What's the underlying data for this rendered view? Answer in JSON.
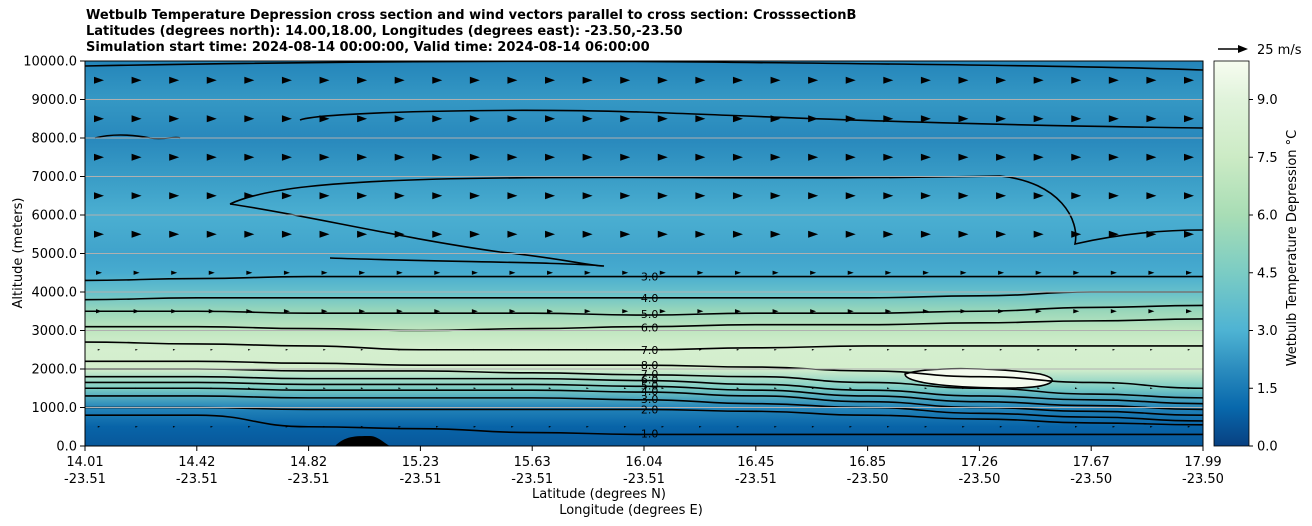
{
  "chart_data": {
    "type": "contour",
    "title_lines": [
      "Wetbulb Temperature Depression cross section and wind vectors parallel to cross section: CrosssectionB",
      "Latitudes (degrees north): 14.00,18.00, Longitudes (degrees east): -23.50,-23.50",
      "Simulation start time: 2024-08-14 00:00:00, Valid time: 2024-08-14 06:00:00"
    ],
    "xlabel": "Latitude (degrees N)",
    "xlabel2": "Longitude (degrees E)",
    "ylabel": "Altitude (meters)",
    "ylim": [
      0,
      10000
    ],
    "yticks": [
      "0.0",
      "1000.0",
      "2000.0",
      "3000.0",
      "4000.0",
      "5000.0",
      "6000.0",
      "7000.0",
      "8000.0",
      "9000.0",
      "10000.0"
    ],
    "xticks": [
      {
        "lat": "14.01",
        "lon": "-23.51"
      },
      {
        "lat": "14.42",
        "lon": "-23.51"
      },
      {
        "lat": "14.82",
        "lon": "-23.51"
      },
      {
        "lat": "15.23",
        "lon": "-23.51"
      },
      {
        "lat": "15.63",
        "lon": "-23.51"
      },
      {
        "lat": "16.04",
        "lon": "-23.51"
      },
      {
        "lat": "16.45",
        "lon": "-23.51"
      },
      {
        "lat": "16.85",
        "lon": "-23.50"
      },
      {
        "lat": "17.26",
        "lon": "-23.50"
      },
      {
        "lat": "17.67",
        "lon": "-23.50"
      },
      {
        "lat": "17.99",
        "lon": "-23.50"
      }
    ],
    "grid": "horizontal",
    "colorbar": {
      "label": "Wetbulb Temperature Depression °C",
      "range": [
        0,
        10
      ],
      "ticks": [
        "0.0",
        "1.5",
        "3.0",
        "4.5",
        "6.0",
        "7.5",
        "9.0"
      ],
      "colormap": "GnBu (reversed)"
    },
    "quiver_key": "25 m/s",
    "contour_labels": [
      "1.0",
      "2.0",
      "3.0",
      "4.0",
      "5.0",
      "6.0",
      "7.0",
      "8.0",
      "9.0"
    ],
    "profile": [
      {
        "z": 0,
        "value": 0.6
      },
      {
        "z": 500,
        "value": 0.9
      },
      {
        "z": 1000,
        "value": 1.8
      },
      {
        "z": 1500,
        "value": 4.5
      },
      {
        "z": 2000,
        "value": 8.0
      },
      {
        "z": 2500,
        "value": 8.2
      },
      {
        "z": 3000,
        "value": 7.0
      },
      {
        "z": 3500,
        "value": 5.5
      },
      {
        "z": 4000,
        "value": 3.8
      },
      {
        "z": 4500,
        "value": 2.8
      },
      {
        "z": 5000,
        "value": 2.6
      },
      {
        "z": 6000,
        "value": 2.9
      },
      {
        "z": 7000,
        "value": 2.4
      },
      {
        "z": 8000,
        "value": 1.9
      },
      {
        "z": 9000,
        "value": 2.3
      },
      {
        "z": 10000,
        "value": 1.8
      }
    ],
    "contours": [
      {
        "level": "1.0",
        "z": [
          800,
          800,
          500,
          450,
          350,
          300,
          300,
          300,
          300,
          300,
          300
        ]
      },
      {
        "level": "2.0",
        "z": [
          1000,
          1000,
          950,
          950,
          950,
          950,
          900,
          800,
          700,
          600,
          550
        ]
      },
      {
        "level": "3.0",
        "z": [
          1300,
          1300,
          1250,
          1250,
          1250,
          1200,
          1100,
          1000,
          850,
          750,
          650
        ]
      },
      {
        "level": "4.0",
        "z": [
          1500,
          1500,
          1450,
          1450,
          1450,
          1400,
          1300,
          1150,
          1000,
          900,
          800
        ]
      },
      {
        "level": "5.0",
        "z": [
          1650,
          1650,
          1600,
          1600,
          1600,
          1550,
          1450,
          1300,
          1150,
          1050,
          950
        ]
      },
      {
        "level": "6.0",
        "z": [
          1800,
          1800,
          1750,
          1750,
          1750,
          1700,
          1600,
          1450,
          1300,
          1200,
          1100
        ]
      },
      {
        "level": "7.0",
        "z": [
          2000,
          2000,
          1950,
          1950,
          1900,
          1850,
          1800,
          1650,
          1500,
          1350,
          1250
        ]
      },
      {
        "level": "8.0",
        "z": [
          2200,
          2200,
          2150,
          2100,
          2100,
          2100,
          2050,
          1950,
          1800,
          1650,
          1500
        ]
      },
      {
        "level": "7.0",
        "z": [
          2700,
          2650,
          2600,
          2500,
          2500,
          2500,
          2550,
          2600,
          2600,
          2600,
          2600
        ]
      },
      {
        "level": "6.0",
        "z": [
          3100,
          3100,
          3050,
          3000,
          3050,
          3100,
          3150,
          3150,
          3200,
          3250,
          3300
        ]
      },
      {
        "level": "5.0",
        "z": [
          3500,
          3500,
          3450,
          3450,
          3450,
          3400,
          3450,
          3450,
          3500,
          3600,
          3650
        ]
      },
      {
        "level": "4.0",
        "z": [
          3800,
          3850,
          3850,
          3850,
          3850,
          3850,
          3850,
          3850,
          3900,
          4000,
          4000
        ]
      },
      {
        "level": "3.0",
        "z": [
          4300,
          4350,
          4400,
          4400,
          4400,
          4400,
          4400,
          4400,
          4400,
          4400,
          4400
        ]
      }
    ]
  }
}
